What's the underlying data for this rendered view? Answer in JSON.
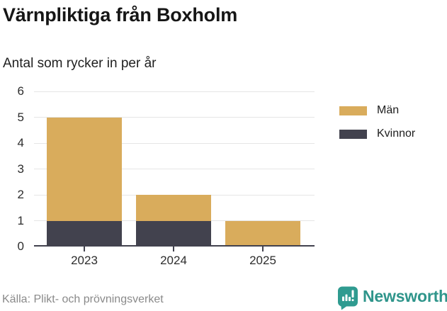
{
  "header": {
    "title": "Värnpliktiga från Boxholm",
    "subtitle": "Antal som rycker in per år"
  },
  "chart_data": {
    "type": "bar",
    "stacked": true,
    "title": "Värnpliktiga från Boxholm",
    "subtitle": "Antal som rycker in per år",
    "categories": [
      "2023",
      "2024",
      "2025"
    ],
    "series": [
      {
        "name": "Män",
        "color": "#D9AC5C",
        "values": [
          4,
          1,
          1
        ]
      },
      {
        "name": "Kvinnor",
        "color": "#42424E",
        "values": [
          1,
          1,
          0
        ]
      }
    ],
    "stack_totals": [
      5,
      2,
      1
    ],
    "xlabel": "",
    "ylabel": "",
    "ylim": [
      0,
      6
    ],
    "yticks": [
      0,
      1,
      2,
      3,
      4,
      5,
      6
    ],
    "grid": true,
    "grid_color": "#E5E5E5",
    "axis_color": "#42424E",
    "legend_position": "right"
  },
  "footer": {
    "source": "Källa: Plikt- och prövningsverket",
    "brand": "Newsworthy",
    "brand_color": "#2F958B"
  }
}
